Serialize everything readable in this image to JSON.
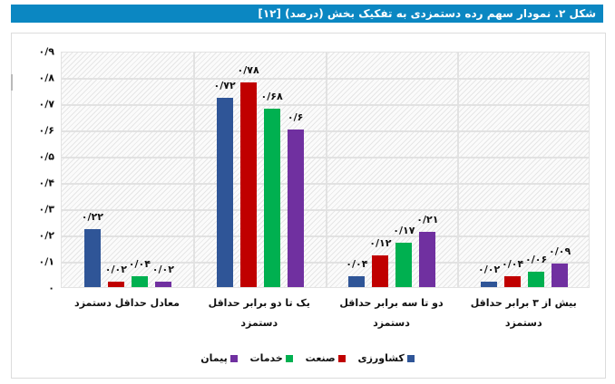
{
  "figure": {
    "title": "شکل ۲. نمودار سهم رده دستمزدی به تفکیک بخش (درصد) [۱۲]"
  },
  "y_axis": {
    "ticks": [
      "۰",
      "۰/۱",
      "۰/۲",
      "۰/۳",
      "۰/۴",
      "۰/۵",
      "۰/۶",
      "۰/۷",
      "۰/۸",
      "۰/۹"
    ]
  },
  "categories": [
    {
      "label": "معادل حداقل دستمزد",
      "values_label": [
        "۰/۲۲",
        "۰/۰۲",
        "۰/۰۴",
        "۰/۰۲"
      ]
    },
    {
      "label": "یک تا دو برابر حداقل دستمزد",
      "values_label": [
        "۰/۷۲",
        "۰/۷۸",
        "۰/۶۸",
        "۰/۶"
      ]
    },
    {
      "label": "دو تا سه برابر حداقل دستمزد",
      "values_label": [
        "۰/۰۴",
        "۰/۱۲",
        "۰/۱۷",
        "۰/۲۱"
      ]
    },
    {
      "label": "بیش از ۳ برابر حداقل دستمزد",
      "values_label": [
        "۰/۰۲",
        "۰/۰۴",
        "۰/۰۶",
        "۰/۰۹"
      ]
    }
  ],
  "legend": [
    {
      "label": "کشاورزی",
      "color": "#2f5597"
    },
    {
      "label": "صنعت",
      "color": "#c00000"
    },
    {
      "label": "خدمات",
      "color": "#00b050"
    },
    {
      "label": "پیمان",
      "color": "#7030a0"
    }
  ],
  "chart_data": {
    "type": "bar",
    "title": "شکل ۲. نمودار سهم رده دستمزدی به تفکیک بخش (درصد) [۱۲]",
    "categories": [
      "معادل حداقل دستمزد",
      "یک تا دو برابر حداقل دستمزد",
      "دو تا سه برابر حداقل دستمزد",
      "بیش از ۳ برابر حداقل دستمزد"
    ],
    "series": [
      {
        "name": "کشاورزی",
        "color": "#2f5597",
        "values": [
          0.22,
          0.72,
          0.04,
          0.02
        ]
      },
      {
        "name": "صنعت",
        "color": "#c00000",
        "values": [
          0.02,
          0.78,
          0.12,
          0.04
        ]
      },
      {
        "name": "خدمات",
        "color": "#00b050",
        "values": [
          0.04,
          0.68,
          0.17,
          0.06
        ]
      },
      {
        "name": "پیمان",
        "color": "#7030a0",
        "values": [
          0.02,
          0.6,
          0.21,
          0.09
        ]
      }
    ],
    "xlabel": "",
    "ylabel": "",
    "ylim": [
      0,
      0.9
    ],
    "yticks": [
      0,
      0.1,
      0.2,
      0.3,
      0.4,
      0.5,
      0.6,
      0.7,
      0.8,
      0.9
    ],
    "grid": true,
    "legend_position": "bottom",
    "data_labels": true
  }
}
